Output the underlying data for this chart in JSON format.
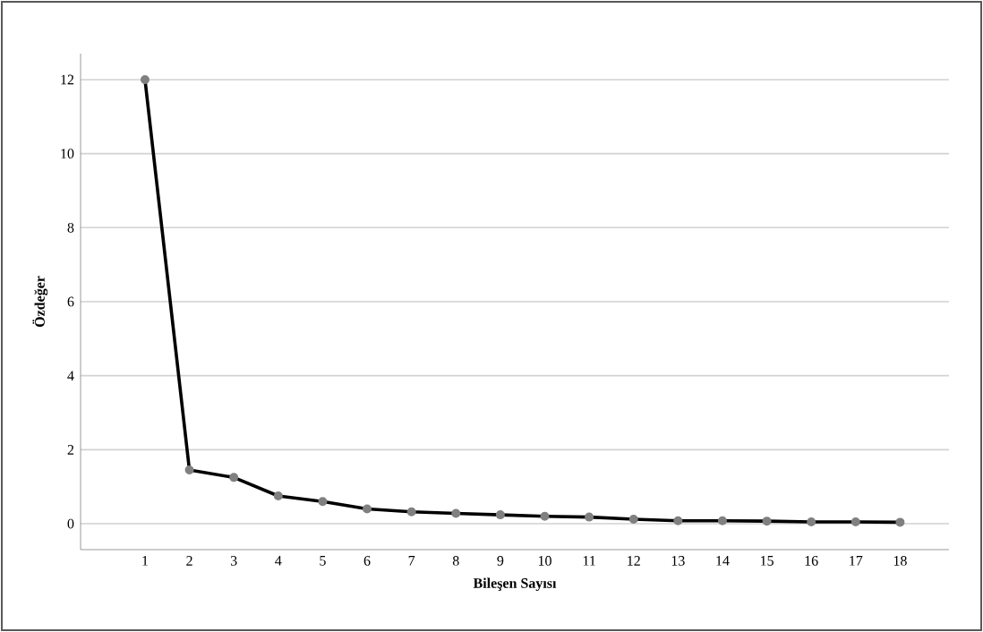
{
  "chart_data": {
    "type": "line",
    "xlabel": "Bileşen Sayısı",
    "ylabel": "Özdeğer",
    "categories": [
      "1",
      "2",
      "3",
      "4",
      "5",
      "6",
      "7",
      "8",
      "9",
      "10",
      "11",
      "12",
      "13",
      "14",
      "15",
      "16",
      "17",
      "18"
    ],
    "values": [
      12,
      1.45,
      1.25,
      0.75,
      0.6,
      0.4,
      0.32,
      0.28,
      0.24,
      0.2,
      0.18,
      0.12,
      0.08,
      0.08,
      0.07,
      0.05,
      0.05,
      0.04
    ],
    "color": "#000000",
    "ylim": [
      -0.7,
      12.7
    ],
    "yticks": [
      0,
      2,
      4,
      6,
      8,
      10,
      12
    ],
    "grid": "y",
    "marker": "circle",
    "line_style": "solid"
  }
}
